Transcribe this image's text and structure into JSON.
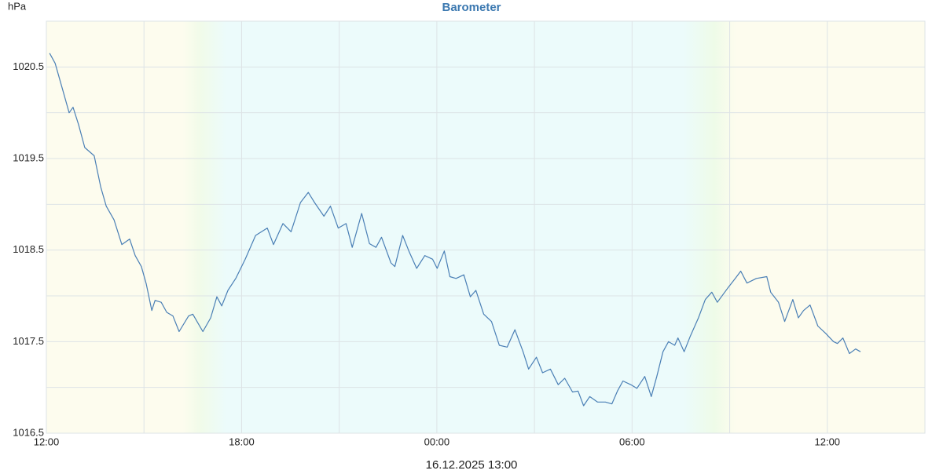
{
  "chart_data": {
    "type": "line",
    "title": "Barometer",
    "y_label": "hPa",
    "caption": "16.12.2025 13:00",
    "color": "#4a7fb5",
    "grid": true,
    "xlim": [
      0,
      27
    ],
    "ylim": [
      1016.5,
      1021
    ],
    "xticks": [
      {
        "value": 0,
        "label": "12:00"
      },
      {
        "value": 6,
        "label": "18:00"
      },
      {
        "value": 12,
        "label": "00:00"
      },
      {
        "value": 18,
        "label": "06:00"
      },
      {
        "value": 24,
        "label": "12:00"
      }
    ],
    "minor_xticks": [
      3,
      9,
      15,
      21
    ],
    "yticks": [
      1016.5,
      1017.5,
      1018.5,
      1019.5,
      1020.5
    ],
    "minor_yticks": [
      1017,
      1018,
      1019,
      1020
    ],
    "x": [
      0.1,
      0.27,
      0.51,
      0.7,
      0.82,
      0.99,
      1.18,
      1.47,
      1.67,
      1.84,
      2.08,
      2.32,
      2.56,
      2.73,
      2.92,
      3.07,
      3.24,
      3.34,
      3.53,
      3.7,
      3.89,
      4.08,
      4.37,
      4.5,
      4.81,
      5.05,
      5.24,
      5.39,
      5.58,
      5.82,
      6.11,
      6.43,
      6.79,
      6.98,
      7.27,
      7.52,
      7.81,
      8.05,
      8.24,
      8.53,
      8.73,
      8.97,
      9.21,
      9.4,
      9.69,
      9.93,
      10.13,
      10.3,
      10.59,
      10.71,
      10.95,
      11.14,
      11.38,
      11.63,
      11.87,
      12.01,
      12.23,
      12.4,
      12.59,
      12.83,
      13.03,
      13.2,
      13.44,
      13.68,
      13.92,
      14.16,
      14.4,
      14.65,
      14.82,
      15.06,
      15.25,
      15.49,
      15.73,
      15.93,
      16.17,
      16.34,
      16.51,
      16.7,
      16.94,
      17.18,
      17.38,
      17.55,
      17.72,
      17.96,
      18.15,
      18.39,
      18.59,
      18.76,
      18.95,
      19.12,
      19.31,
      19.41,
      19.6,
      19.79,
      20.04,
      20.25,
      20.45,
      20.62,
      20.93,
      21.17,
      21.34,
      21.53,
      21.82,
      22.14,
      22.26,
      22.5,
      22.69,
      22.94,
      23.11,
      23.27,
      23.47,
      23.71,
      23.95,
      24.19,
      24.31,
      24.48,
      24.68,
      24.87,
      25.02
    ],
    "values": [
      1020.65,
      1020.54,
      1020.24,
      1020.0,
      1020.06,
      1019.87,
      1019.62,
      1019.53,
      1019.19,
      1018.98,
      1018.83,
      1018.56,
      1018.62,
      1018.44,
      1018.32,
      1018.13,
      1017.84,
      1017.95,
      1017.93,
      1017.82,
      1017.78,
      1017.61,
      1017.78,
      1017.8,
      1017.61,
      1017.76,
      1017.99,
      1017.89,
      1018.06,
      1018.19,
      1018.4,
      1018.66,
      1018.74,
      1018.56,
      1018.79,
      1018.7,
      1019.02,
      1019.13,
      1019.02,
      1018.87,
      1018.98,
      1018.74,
      1018.79,
      1018.53,
      1018.9,
      1018.57,
      1018.53,
      1018.64,
      1018.36,
      1018.32,
      1018.66,
      1018.49,
      1018.3,
      1018.44,
      1018.4,
      1018.3,
      1018.49,
      1018.21,
      1018.19,
      1018.23,
      1017.99,
      1018.06,
      1017.8,
      1017.72,
      1017.46,
      1017.44,
      1017.63,
      1017.39,
      1017.2,
      1017.33,
      1017.16,
      1017.2,
      1017.03,
      1017.1,
      1016.95,
      1016.96,
      1016.8,
      1016.9,
      1016.84,
      1016.84,
      1016.82,
      1016.96,
      1017.07,
      1017.03,
      1016.99,
      1017.12,
      1016.9,
      1017.12,
      1017.39,
      1017.5,
      1017.46,
      1017.54,
      1017.39,
      1017.56,
      1017.76,
      1017.96,
      1018.04,
      1017.93,
      1018.08,
      1018.19,
      1018.27,
      1018.14,
      1018.19,
      1018.21,
      1018.04,
      1017.93,
      1017.72,
      1017.96,
      1017.76,
      1017.84,
      1017.9,
      1017.67,
      1017.59,
      1017.5,
      1017.48,
      1017.54,
      1017.37,
      1017.42,
      1017.39
    ]
  }
}
